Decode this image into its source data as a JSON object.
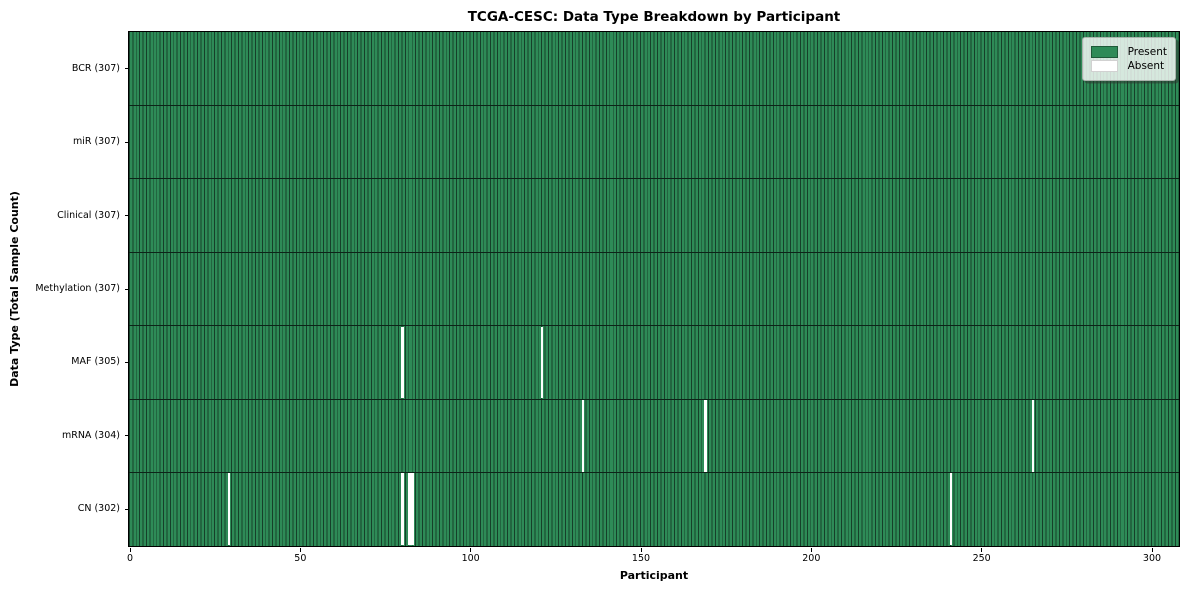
{
  "title": "TCGA-CESC: Data Type Breakdown by Participant",
  "x_axis": {
    "label": "Participant",
    "ticks": [
      0,
      50,
      100,
      150,
      200,
      250,
      300
    ]
  },
  "y_axis": {
    "label": "Data Type (Total Sample Count)"
  },
  "legend": {
    "items": [
      {
        "label": "Present",
        "swatch": "present"
      },
      {
        "label": "Absent",
        "swatch": "absent"
      }
    ]
  },
  "colors": {
    "present": "#2e8b57",
    "present_edge": "#16402a",
    "absent": "#ffffff",
    "separator": "#0d2418",
    "axis": "#000000"
  },
  "chart_data": {
    "type": "heatmap",
    "title": "TCGA-CESC: Data Type Breakdown by Participant",
    "xlabel": "Participant",
    "ylabel": "Data Type (Total Sample Count)",
    "x_range": [
      0,
      307
    ],
    "total_participants": 307,
    "x_ticks": [
      0,
      50,
      100,
      150,
      200,
      250,
      300
    ],
    "legend_entries": [
      "Present",
      "Absent"
    ],
    "legend_position": "upper right",
    "grid": false,
    "rows": [
      {
        "label": "BCR (307)",
        "data_type": "BCR",
        "present_count": 307,
        "absent_participants": []
      },
      {
        "label": "miR (307)",
        "data_type": "miR",
        "present_count": 307,
        "absent_participants": []
      },
      {
        "label": "Clinical (307)",
        "data_type": "Clinical",
        "present_count": 307,
        "absent_participants": []
      },
      {
        "label": "Methylation (307)",
        "data_type": "Methylation",
        "present_count": 307,
        "absent_participants": []
      },
      {
        "label": "MAF (305)",
        "data_type": "MAF",
        "present_count": 305,
        "absent_participants": [
          80,
          121
        ]
      },
      {
        "label": "mRNA (304)",
        "data_type": "mRNA",
        "present_count": 304,
        "absent_participants": [
          133,
          169,
          265
        ]
      },
      {
        "label": "CN (302)",
        "data_type": "CN",
        "present_count": 302,
        "absent_participants": [
          29,
          80,
          82,
          83,
          241
        ]
      }
    ]
  }
}
